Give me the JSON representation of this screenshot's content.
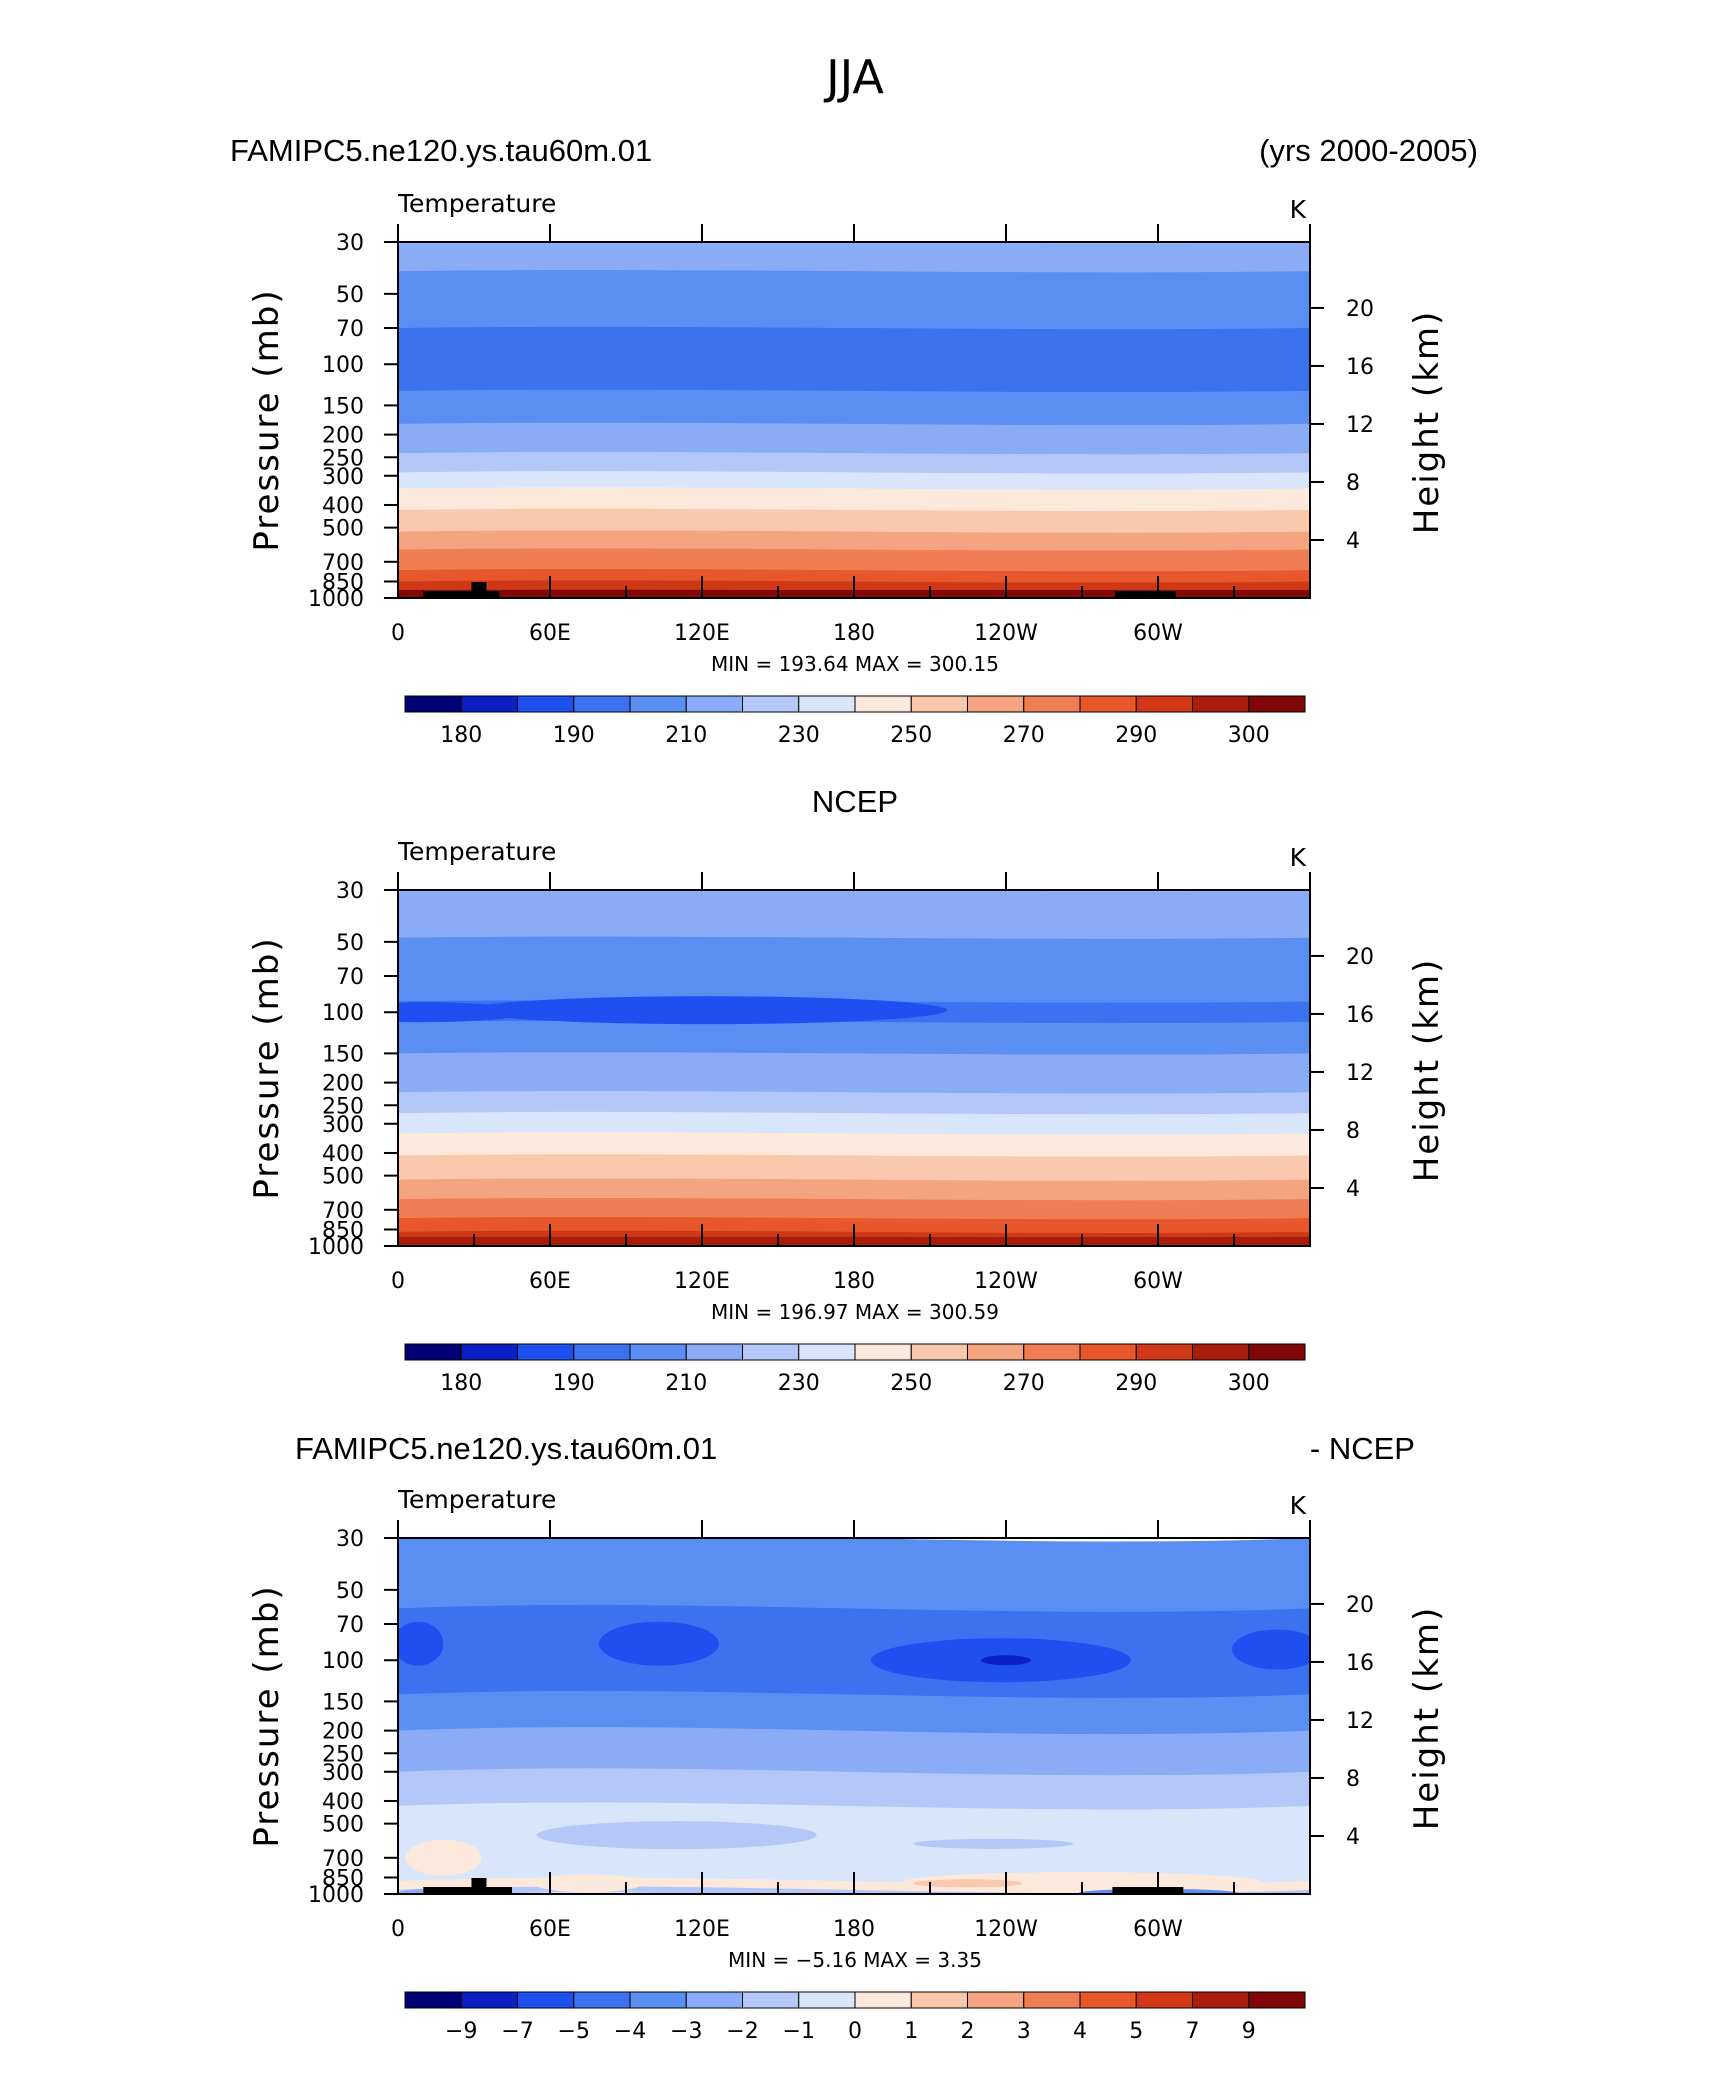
{
  "title": "JJA",
  "palette": [
    "#000075",
    "#0a1fc6",
    "#1e4ff0",
    "#3a72f0",
    "#5b8ef2",
    "#8aabf5",
    "#b3c8f8",
    "#d8e6fb",
    "#fde9dc",
    "#f9c8ad",
    "#f5a481",
    "#f07e55",
    "#e8562b",
    "#d03716",
    "#a91c0a",
    "#820807"
  ],
  "chart_data": [
    {
      "type": "heatmap",
      "header_left": "FAMIPC5.ne120.ys.tau60m.01",
      "header_right": "(yrs 2000-2005)",
      "field_label": "Temperature",
      "units": "K",
      "ylabel": "Pressure  (mb)",
      "ylabel_right": "Height  (km)",
      "pressure_ticks": [
        "30",
        "50",
        "70",
        "100",
        "150",
        "200",
        "250",
        "300",
        "400",
        "500",
        "700",
        "850",
        "1000"
      ],
      "height_ticks": [
        "20",
        "16",
        "12",
        "8",
        "4"
      ],
      "lon_ticks": [
        "0",
        "60E",
        "120E",
        "180",
        "120W",
        "60W"
      ],
      "stats": {
        "min_label": "MIN =",
        "min": "193.64",
        "max_label": "MAX =",
        "max": "300.15"
      },
      "colorbar_labels": [
        "180",
        "190",
        "210",
        "230",
        "250",
        "270",
        "290",
        "300"
      ],
      "bands": [
        {
          "p": 30,
          "level": 5
        },
        {
          "p": 40,
          "level": 4
        },
        {
          "p": 70,
          "level": 3
        },
        {
          "p": 130,
          "level": 4
        },
        {
          "p": 180,
          "level": 5
        },
        {
          "p": 240,
          "level": 6
        },
        {
          "p": 290,
          "level": 7
        },
        {
          "p": 340,
          "level": 8
        },
        {
          "p": 420,
          "level": 9
        },
        {
          "p": 520,
          "level": 10
        },
        {
          "p": 620,
          "level": 11
        },
        {
          "p": 760,
          "level": 12
        },
        {
          "p": 850,
          "level": 13
        },
        {
          "p": 930,
          "level": 14
        },
        {
          "p": 1000,
          "level": 14
        }
      ],
      "terrain_lon": [
        [
          10,
          40
        ],
        [
          283,
          307
        ]
      ]
    },
    {
      "type": "heatmap",
      "header_center": "NCEP",
      "field_label": "Temperature",
      "units": "K",
      "ylabel": "Pressure  (mb)",
      "ylabel_right": "Height  (km)",
      "pressure_ticks": [
        "30",
        "50",
        "70",
        "100",
        "150",
        "200",
        "250",
        "300",
        "400",
        "500",
        "700",
        "850",
        "1000"
      ],
      "height_ticks": [
        "20",
        "16",
        "12",
        "8",
        "4"
      ],
      "lon_ticks": [
        "0",
        "60E",
        "120E",
        "180",
        "120W",
        "60W"
      ],
      "stats": {
        "min_label": "MIN =",
        "min": "196.97",
        "max_label": "MAX =",
        "max": "300.59"
      },
      "colorbar_labels": [
        "180",
        "190",
        "210",
        "230",
        "250",
        "270",
        "290",
        "300"
      ],
      "bands": [
        {
          "p": 30,
          "level": 5
        },
        {
          "p": 48,
          "level": 4
        },
        {
          "p": 90,
          "level": 3
        },
        {
          "p": 110,
          "level": 4
        },
        {
          "p": 150,
          "level": 5
        },
        {
          "p": 220,
          "level": 6
        },
        {
          "p": 270,
          "level": 7
        },
        {
          "p": 330,
          "level": 8
        },
        {
          "p": 410,
          "level": 9
        },
        {
          "p": 520,
          "level": 10
        },
        {
          "p": 630,
          "level": 11
        },
        {
          "p": 760,
          "level": 12
        },
        {
          "p": 870,
          "level": 13
        },
        {
          "p": 950,
          "level": 14
        },
        {
          "p": 1000,
          "level": 14
        }
      ],
      "terrain_lon": []
    },
    {
      "type": "heatmap",
      "header_left": "FAMIPC5.ne120.ys.tau60m.01",
      "header_right": "- NCEP",
      "field_label": "Temperature",
      "units": "K",
      "ylabel": "Pressure  (mb)",
      "ylabel_right": "Height  (km)",
      "pressure_ticks": [
        "30",
        "50",
        "70",
        "100",
        "150",
        "200",
        "250",
        "300",
        "400",
        "500",
        "700",
        "850",
        "1000"
      ],
      "height_ticks": [
        "20",
        "16",
        "12",
        "8",
        "4"
      ],
      "lon_ticks": [
        "0",
        "60E",
        "120E",
        "180",
        "120W",
        "60W"
      ],
      "stats": {
        "min_label": "MIN =",
        "min": "−5.16",
        "max_label": "MAX =",
        "max": "3.35"
      },
      "colorbar_labels": [
        "−9",
        "−7",
        "−5",
        "−4",
        "−3",
        "−2",
        "−1",
        "0",
        "1",
        "2",
        "3",
        "4",
        "5",
        "7",
        "9"
      ],
      "bands": [
        {
          "p": 30,
          "level": 4
        },
        {
          "p": 60,
          "level": 3
        },
        {
          "p": 140,
          "level": 4
        },
        {
          "p": 200,
          "level": 5
        },
        {
          "p": 300,
          "level": 6
        },
        {
          "p": 420,
          "level": 7
        },
        {
          "p": 720,
          "level": 7
        },
        {
          "p": 880,
          "level": 8
        },
        {
          "p": 960,
          "level": 6
        },
        {
          "p": 1000,
          "level": 6
        }
      ],
      "terrain_lon": [
        [
          10,
          45
        ],
        [
          282,
          310
        ]
      ]
    }
  ]
}
